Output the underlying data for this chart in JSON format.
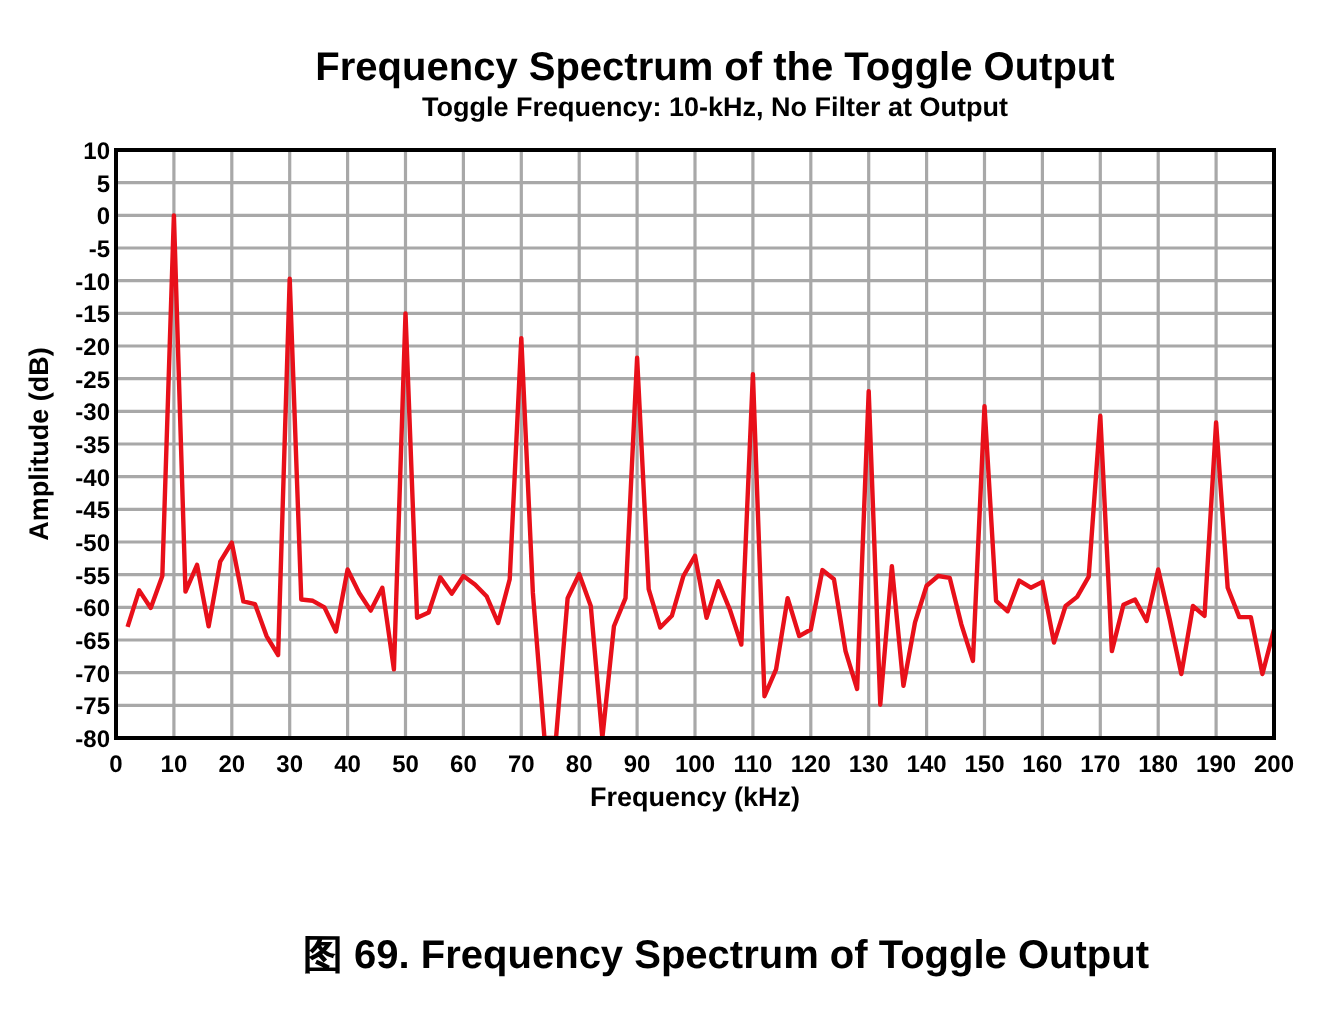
{
  "chart_data": {
    "type": "line",
    "title": "Frequency Spectrum of the Toggle Output",
    "subtitle": "Toggle Frequency: 10-kHz, No Filter at Output",
    "xlabel": "Frequency (kHz)",
    "ylabel": "Amplitude (dB)",
    "annotations": [
      "图 69. Frequency Spectrum of Toggle Output"
    ],
    "x": [
      2,
      4,
      6,
      8,
      10,
      12,
      14,
      16,
      18,
      20,
      22,
      24,
      26,
      28,
      30,
      32,
      34,
      36,
      38,
      40,
      42,
      44,
      46,
      48,
      50,
      52,
      54,
      56,
      58,
      60,
      62,
      64,
      66,
      68,
      70,
      72,
      74,
      76,
      78,
      80,
      82,
      84,
      86,
      88,
      90,
      92,
      94,
      96,
      98,
      100,
      102,
      104,
      106,
      108,
      110,
      112,
      114,
      116,
      118,
      120,
      122,
      124,
      126,
      128,
      130,
      132,
      134,
      136,
      138,
      140,
      142,
      144,
      146,
      148,
      150,
      152,
      154,
      156,
      158,
      160,
      162,
      164,
      166,
      168,
      170,
      172,
      174,
      176,
      178,
      180,
      182,
      184,
      186,
      188,
      190,
      192,
      194,
      196,
      198,
      200
    ],
    "series": [
      {
        "color": "#e8101a",
        "values": [
          -63,
          -57.4,
          -60.1,
          -55.2,
          0,
          -57.6,
          -53.5,
          -62.9,
          -53,
          -50.1,
          -59.1,
          -59.5,
          -64.4,
          -67.3,
          -9.7,
          -58.8,
          -59,
          -60,
          -63.7,
          -54.2,
          -57.8,
          -60.5,
          -57,
          -69.5,
          -15,
          -61.6,
          -60.8,
          -55.4,
          -57.9,
          -55.2,
          -56.5,
          -58.3,
          -62.4,
          -55.7,
          -18.8,
          -57.8,
          -80,
          -80,
          -58.6,
          -54.9,
          -59.8,
          -80,
          -62.9,
          -58.6,
          -21.8,
          -57.2,
          -63.1,
          -61.3,
          -55.2,
          -52.1,
          -61.6,
          -56,
          -60.3,
          -65.7,
          -24.3,
          -73.6,
          -69.5,
          -58.6,
          -64.4,
          -63.4,
          -54.3,
          -55.7,
          -66.7,
          -72.5,
          -26.9,
          -74.9,
          -53.7,
          -72,
          -62.3,
          -56.7,
          -55.2,
          -55.5,
          -62.6,
          -68.2,
          -29.2,
          -59,
          -60.6,
          -55.9,
          -57,
          -56.1,
          -65.4,
          -59.8,
          -58.4,
          -55.3,
          -30.7,
          -66.7,
          -59.6,
          -58.8,
          -62.1,
          -54.2,
          -61.9,
          -70.2,
          -59.8,
          -61.3,
          -31.7,
          -57,
          -61.5,
          -61.5,
          -70.2,
          -63.4
        ]
      }
    ],
    "xlim": [
      0,
      200
    ],
    "xticks": [
      0,
      10,
      20,
      30,
      40,
      50,
      60,
      70,
      80,
      90,
      100,
      110,
      120,
      130,
      140,
      150,
      160,
      170,
      180,
      190,
      200
    ],
    "ylim": [
      -80,
      10
    ],
    "yticks": [
      -80,
      -75,
      -70,
      -65,
      -60,
      -55,
      -50,
      -45,
      -40,
      -35,
      -30,
      -25,
      -20,
      -15,
      -10,
      -5,
      0,
      5,
      10
    ],
    "grid": true,
    "marker": "none",
    "line_style": "solid"
  }
}
